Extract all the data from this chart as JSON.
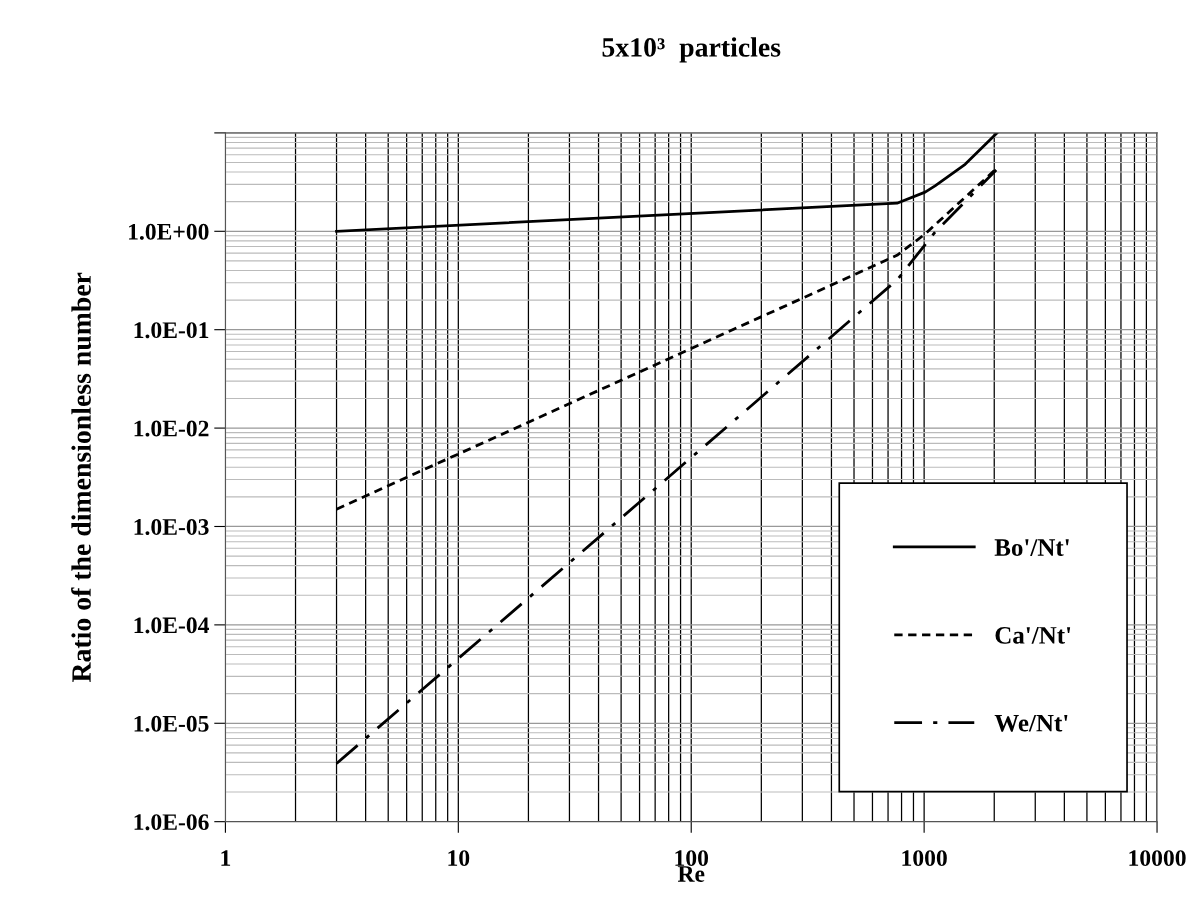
{
  "chart_data": {
    "type": "line",
    "title": "5x10³  particles",
    "xlabel": "Re",
    "ylabel": "Ratio of the dimensionless number",
    "log": "xy",
    "grid": true,
    "legend": "bottom right",
    "marker": "none",
    "xlim": [
      1,
      10000
    ],
    "xticks": [
      1,
      10,
      100,
      1000,
      10000
    ],
    "ylim": [
      1e-06,
      10
    ],
    "yticks": [
      {
        "value": 1e-06,
        "label": "1.0E-06"
      },
      {
        "value": 1e-05,
        "label": "1.0E-05"
      },
      {
        "value": 0.0001,
        "label": "1.0E-04"
      },
      {
        "value": 0.001,
        "label": "1.0E-03"
      },
      {
        "value": 0.01,
        "label": "1.0E-02"
      },
      {
        "value": 0.1,
        "label": "1.0E-01"
      },
      {
        "value": 1,
        "label": "1.0E+00"
      },
      {
        "value": 10,
        "label": null
      }
    ],
    "series": [
      {
        "name": "Bo'/Nt'",
        "color": "#000000",
        "line_style": "solid",
        "x": [
          3,
          765,
          1010,
          1114,
          1500,
          2057
        ],
        "values": [
          1.0,
          1.93,
          2.5,
          2.9,
          4.8,
          10
        ]
      },
      {
        "name": "Ca'/Nt'",
        "color": "#000000",
        "line_style": "dashed",
        "x": [
          3,
          765,
          1010,
          2057
        ],
        "values": [
          0.0015,
          0.57,
          0.94,
          4.4
        ]
      },
      {
        "name": "We/Nt'",
        "color": "#000000",
        "line_style": "dashdot",
        "x": [
          3,
          765,
          1114,
          2040
        ],
        "values": [
          3.9e-06,
          0.32,
          0.98,
          4.2
        ]
      }
    ]
  }
}
